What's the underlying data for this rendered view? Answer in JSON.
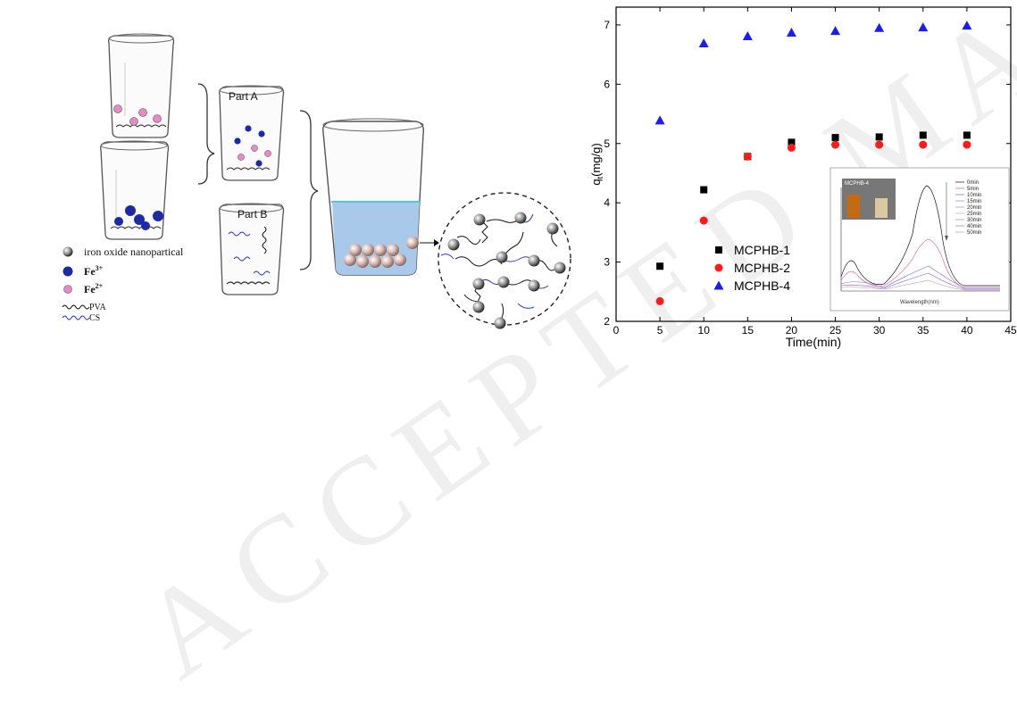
{
  "watermark": "ACCEPTED MANUSCRIPT",
  "scheme": {
    "part_a": "Part A",
    "part_b": "Part B",
    "legend": {
      "nanoparticle": "iron oxide nanopartical",
      "fe3": "Fe",
      "fe3_sup": "3+",
      "fe2": "Fe",
      "fe2_sup": "2+",
      "pva": "PVA",
      "cs": "CS"
    },
    "colors": {
      "fe3": "#1c2aa6",
      "fe2": "#e58ac6",
      "water": "#a9c9ea",
      "pva": "#111111",
      "cs": "#2a3ad0"
    }
  },
  "chart_data": {
    "type": "scatter",
    "xlabel": "Time(min)",
    "ylabel": "q",
    "ylabel_sub": "t",
    "ylabel_unit": "(mg/g)",
    "xlim": [
      0,
      45
    ],
    "ylim": [
      2,
      7.3
    ],
    "xticks": [
      0,
      5,
      10,
      15,
      20,
      25,
      30,
      35,
      40,
      45
    ],
    "yticks": [
      2,
      3,
      4,
      5,
      6,
      7
    ],
    "grid": false,
    "legend_position": "lower-left",
    "series": [
      {
        "name": "MCPHB-1",
        "marker": "square",
        "color": "#000000",
        "x": [
          5,
          10,
          15,
          20,
          25,
          30,
          35,
          40
        ],
        "y": [
          2.93,
          4.22,
          4.78,
          5.02,
          5.1,
          5.11,
          5.14,
          5.14
        ]
      },
      {
        "name": "MCPHB-2",
        "marker": "circle",
        "color": "#ff1a1a",
        "x": [
          5,
          10,
          15,
          20,
          25,
          30,
          35,
          40
        ],
        "y": [
          2.34,
          3.7,
          4.78,
          4.93,
          4.98,
          4.98,
          4.98,
          4.98
        ]
      },
      {
        "name": "MCPHB-4",
        "marker": "triangle",
        "color": "#1a1aff",
        "x": [
          5,
          10,
          15,
          20,
          25,
          30,
          35,
          40
        ],
        "y": [
          5.39,
          6.69,
          6.81,
          6.87,
          6.9,
          6.95,
          6.96,
          6.99
        ]
      }
    ],
    "inset": {
      "label": "MCPHB-4",
      "xlabel": "Wavelength(nm)",
      "legend": [
        "0min",
        "5min",
        "10min",
        "15min",
        "20min",
        "25min",
        "30min",
        "40min",
        "50min"
      ]
    }
  }
}
